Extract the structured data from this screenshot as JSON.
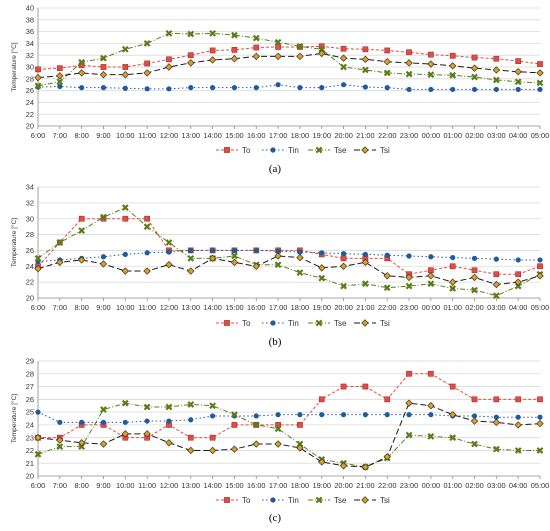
{
  "colors": {
    "To": "#e64a43",
    "Tin": "#1f5b9e",
    "Tse": "#5a7d1a",
    "Tsi": "#e0a020"
  },
  "chart_data": [
    {
      "type": "line",
      "caption": "(a)",
      "ylabel": "Temperature [°C]",
      "ylim": [
        20,
        40
      ],
      "ystep": 2,
      "categories": [
        "6:00",
        "7:00",
        "8:00",
        "9:00",
        "10:00",
        "11:00",
        "12:00",
        "13:00",
        "14:00",
        "15:00",
        "16:00",
        "17:00",
        "18:00",
        "19:00",
        "20:00",
        "21:00",
        "22:00",
        "23:00",
        "00:00",
        "01:00",
        "02:00",
        "03:00",
        "04:00",
        "05:00"
      ],
      "series": [
        {
          "name": "To",
          "values": [
            29.6,
            29.8,
            30.3,
            30.0,
            30.0,
            30.6,
            31.3,
            32.0,
            32.8,
            32.9,
            33.3,
            33.4,
            33.4,
            33.5,
            33.1,
            33.0,
            32.8,
            32.5,
            32.1,
            31.9,
            31.6,
            31.4,
            31.0,
            30.5
          ]
        },
        {
          "name": "Tin",
          "values": [
            26.6,
            26.7,
            26.5,
            26.5,
            26.4,
            26.3,
            26.3,
            26.5,
            26.5,
            26.5,
            26.5,
            27.0,
            26.5,
            26.5,
            27.0,
            26.6,
            26.5,
            26.2,
            26.2,
            26.2,
            26.2,
            26.2,
            26.2,
            26.2
          ]
        },
        {
          "name": "Tse",
          "values": [
            26.8,
            27.5,
            30.8,
            31.5,
            33.0,
            34.0,
            35.7,
            35.6,
            35.7,
            35.4,
            34.9,
            34.2,
            33.5,
            33.0,
            30.0,
            29.5,
            29.0,
            28.8,
            28.7,
            28.6,
            28.3,
            27.8,
            27.5,
            27.3
          ]
        },
        {
          "name": "Tsi",
          "values": [
            28.2,
            28.5,
            29.0,
            28.7,
            28.7,
            29.0,
            30.0,
            30.7,
            31.2,
            31.4,
            31.8,
            31.8,
            31.8,
            32.3,
            31.5,
            31.3,
            30.9,
            30.7,
            30.5,
            30.2,
            29.8,
            29.5,
            29.2,
            29.0
          ]
        }
      ]
    },
    {
      "type": "line",
      "caption": "(b)",
      "ylabel": "Temperature [°C]",
      "ylim": [
        20,
        34
      ],
      "ystep": 2,
      "categories": [
        "6:00",
        "7:00",
        "8:00",
        "9:00",
        "10:00",
        "11:00",
        "12:00",
        "13:00",
        "14:00",
        "15:00",
        "16:00",
        "17:00",
        "18:00",
        "19:00",
        "20:00",
        "21:00",
        "22:00",
        "23:00",
        "00:00",
        "01:00",
        "02:00",
        "03:00",
        "04:00",
        "05:00"
      ],
      "series": [
        {
          "name": "To",
          "values": [
            24.0,
            27.0,
            30.0,
            30.0,
            30.0,
            30.0,
            26.0,
            26.0,
            26.0,
            26.0,
            26.0,
            26.0,
            26.0,
            25.5,
            25.0,
            25.0,
            25.0,
            23.0,
            23.5,
            24.0,
            23.5,
            23.0,
            23.0,
            24.0
          ]
        },
        {
          "name": "Tin",
          "values": [
            24.6,
            24.8,
            25.0,
            25.2,
            25.5,
            25.7,
            25.8,
            26.0,
            26.0,
            26.0,
            26.0,
            25.9,
            25.8,
            25.7,
            25.6,
            25.5,
            25.4,
            25.3,
            25.2,
            25.1,
            25.0,
            24.9,
            24.8,
            24.8
          ]
        },
        {
          "name": "Tse",
          "values": [
            25.0,
            27.0,
            28.5,
            30.2,
            31.4,
            29.0,
            27.0,
            25.0,
            25.0,
            25.3,
            24.2,
            24.2,
            23.2,
            22.5,
            21.5,
            21.8,
            21.3,
            21.5,
            21.8,
            21.2,
            21.0,
            20.3,
            21.5,
            23.0
          ]
        },
        {
          "name": "Tsi",
          "values": [
            23.7,
            24.5,
            24.8,
            24.3,
            23.4,
            23.4,
            24.2,
            23.4,
            25.0,
            24.5,
            24.0,
            25.3,
            25.1,
            23.8,
            24.0,
            24.5,
            22.8,
            22.6,
            22.8,
            22.0,
            22.6,
            21.7,
            22.0,
            22.8
          ]
        }
      ]
    },
    {
      "type": "line",
      "caption": "(c)",
      "ylabel": "Temperature [°C]",
      "ylim": [
        20,
        29
      ],
      "ystep": 1,
      "categories": [
        "6:00",
        "7:00",
        "8:00",
        "9:00",
        "10:00",
        "11:00",
        "12:00",
        "13:00",
        "14:00",
        "15:00",
        "16:00",
        "17:00",
        "18:00",
        "19:00",
        "20:00",
        "21:00",
        "22:00",
        "23:00",
        "00:00",
        "01:00",
        "02:00",
        "03:00",
        "04:00",
        "05:00"
      ],
      "series": [
        {
          "name": "To",
          "values": [
            23.0,
            23.0,
            24.0,
            24.0,
            23.0,
            23.0,
            24.0,
            23.0,
            23.0,
            24.0,
            24.0,
            24.0,
            24.0,
            26.0,
            27.0,
            27.0,
            26.0,
            28.0,
            28.0,
            27.0,
            26.0,
            26.0,
            26.0,
            26.0
          ]
        },
        {
          "name": "Tin",
          "values": [
            25.0,
            24.2,
            24.2,
            24.2,
            24.2,
            24.3,
            24.3,
            24.4,
            24.7,
            24.7,
            24.7,
            24.8,
            24.8,
            24.8,
            24.8,
            24.8,
            24.8,
            24.8,
            24.8,
            24.7,
            24.7,
            24.6,
            24.6,
            24.6
          ]
        },
        {
          "name": "Tse",
          "values": [
            21.7,
            22.3,
            22.3,
            25.2,
            25.7,
            25.4,
            25.4,
            25.6,
            25.5,
            24.8,
            24.0,
            23.7,
            22.5,
            21.3,
            21.0,
            20.7,
            21.4,
            23.2,
            23.1,
            23.0,
            22.5,
            22.1,
            22.0,
            22.0
          ]
        },
        {
          "name": "Tsi",
          "values": [
            23.0,
            22.8,
            22.6,
            22.5,
            23.3,
            23.3,
            22.6,
            22.0,
            22.0,
            22.1,
            22.5,
            22.5,
            22.2,
            21.1,
            20.8,
            20.7,
            21.5,
            25.7,
            25.5,
            24.8,
            24.3,
            24.2,
            24.0,
            24.1
          ]
        }
      ]
    }
  ]
}
